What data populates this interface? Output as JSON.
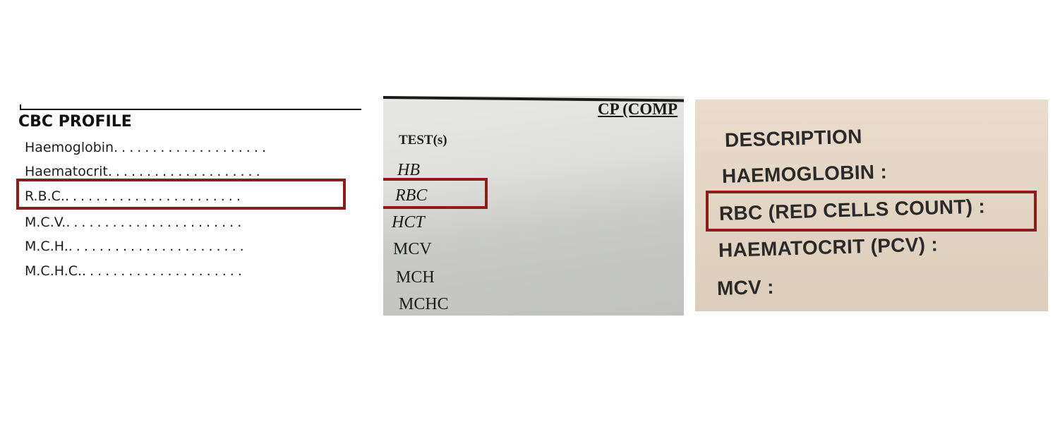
{
  "panels": [
    {
      "heading": "CBC PROFILE",
      "rows": [
        {
          "label": "Haemoglobin",
          "dots": "...................."
        },
        {
          "label": "Haematocrit",
          "dots": "...................."
        },
        {
          "label": "R.B.C.",
          "dots": "......................."
        },
        {
          "label": "M.C.V.",
          "dots": "......................."
        },
        {
          "label": "M.C.H.",
          "dots": "......................."
        },
        {
          "label": "M.C.H.C.",
          "dots": "....................."
        }
      ],
      "highlighted": "R.B.C."
    },
    {
      "header": "CP (COMP",
      "column_header": "TEST(s)",
      "rows": [
        "HB",
        "RBC",
        "HCT",
        "MCV",
        "MCH",
        "MCHC"
      ],
      "highlighted": "RBC"
    },
    {
      "column_header": "DESCRIPTION",
      "rows": [
        "HAEMOGLOBIN :",
        "RBC (RED CELLS COUNT) :",
        "HAEMATOCRIT (PCV) :",
        "MCV :"
      ],
      "highlighted": "RBC (RED CELLS COUNT) :"
    }
  ],
  "colors": {
    "highlight_box": "#8b1d1a"
  }
}
